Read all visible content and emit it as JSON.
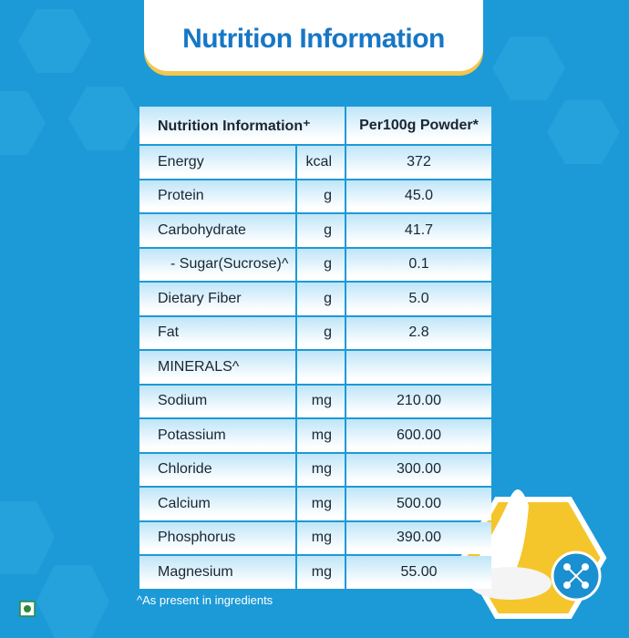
{
  "header": {
    "title": "Nutrition Information"
  },
  "table": {
    "columns": [
      "Nutrition Information⁺",
      "Per100g Powder*"
    ],
    "rows": [
      [
        "Energy",
        "kcal",
        "372"
      ],
      [
        "Protein",
        "g",
        "45.0"
      ],
      [
        "Carbohydrate",
        "g",
        "41.7"
      ],
      [
        "- Sugar(Sucrose)^",
        "g",
        "0.1"
      ],
      [
        "Dietary Fiber",
        "g",
        "5.0"
      ],
      [
        "Fat",
        "g",
        "2.8"
      ],
      [
        "MINERALS^"
      ],
      [
        "Sodium",
        "mg",
        "210.00"
      ],
      [
        "Potassium",
        "mg",
        "600.00"
      ],
      [
        "Chloride",
        "mg",
        "300.00"
      ],
      [
        "Calcium",
        "mg",
        "500.00"
      ],
      [
        "Phosphorus",
        "mg",
        "390.00"
      ],
      [
        "Magnesium",
        "mg",
        "55.00"
      ]
    ]
  },
  "footnote": "^As present in ingredients"
}
